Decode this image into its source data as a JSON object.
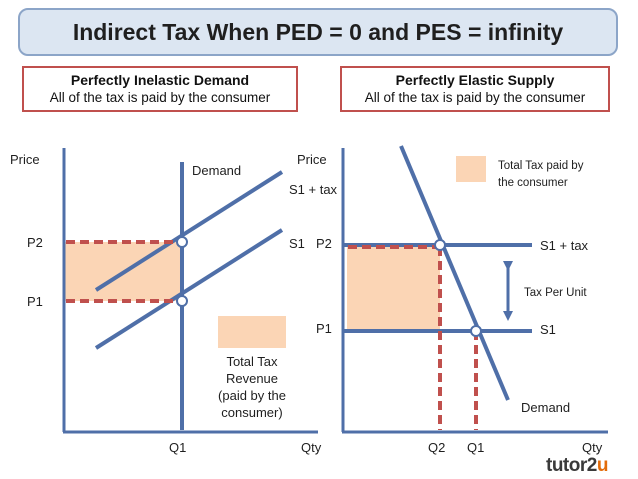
{
  "title": "Indirect Tax When PED = 0 and PES = infinity",
  "left_panel": {
    "heading": "Perfectly Inelastic Demand",
    "subheading": "All of the tax is paid by the consumer"
  },
  "right_panel": {
    "heading": "Perfectly Elastic Supply",
    "subheading": "All of the tax is paid by the consumer"
  },
  "logo": {
    "main": "tutor2",
    "accent": "u"
  },
  "colors": {
    "axis": "#4f6fa8",
    "curve": "#4f6fa8",
    "dashed": "#c0504d",
    "shade": "#fbd5b5",
    "title_bg": "#dce6f2",
    "border_red": "#c0504d"
  },
  "chart_data": [
    {
      "type": "line",
      "title": "Perfectly Inelastic Demand",
      "ylabel": "Price",
      "xlabel": "Qty",
      "x_ticks": [
        "Q1"
      ],
      "y_ticks": [
        "P1",
        "P2"
      ],
      "curves": [
        {
          "name": "Demand",
          "label": "Demand",
          "kind": "vertical"
        },
        {
          "name": "S1",
          "label": "S1",
          "kind": "upward-sloping"
        },
        {
          "name": "S1 + tax",
          "label": "S1 + tax",
          "kind": "upward-sloping"
        }
      ],
      "equilibria": [
        {
          "name": "before tax",
          "price": "P1",
          "quantity": "Q1"
        },
        {
          "name": "after tax",
          "price": "P2",
          "quantity": "Q1"
        }
      ],
      "legend": {
        "label": "Total Tax Revenue (paid by the consumer)",
        "lines": [
          "Total Tax",
          "Revenue",
          "(paid by the",
          "consumer)"
        ]
      }
    },
    {
      "type": "line",
      "title": "Perfectly Elastic Supply",
      "ylabel": "Price",
      "xlabel": "Qty",
      "x_ticks": [
        "Q2",
        "Q1"
      ],
      "y_ticks": [
        "P1",
        "P2"
      ],
      "curves": [
        {
          "name": "Demand",
          "label": "Demand",
          "kind": "downward-sloping"
        },
        {
          "name": "S1",
          "label": "S1",
          "kind": "horizontal"
        },
        {
          "name": "S1 + tax",
          "label": "S1 + tax",
          "kind": "horizontal"
        }
      ],
      "equilibria": [
        {
          "name": "before tax",
          "price": "P1",
          "quantity": "Q1"
        },
        {
          "name": "after tax",
          "price": "P2",
          "quantity": "Q2"
        }
      ],
      "annotation": "Tax Per Unit",
      "legend": {
        "label": "Total Tax paid by the consumer",
        "lines": [
          "Total Tax paid by",
          "the consumer"
        ]
      }
    }
  ]
}
